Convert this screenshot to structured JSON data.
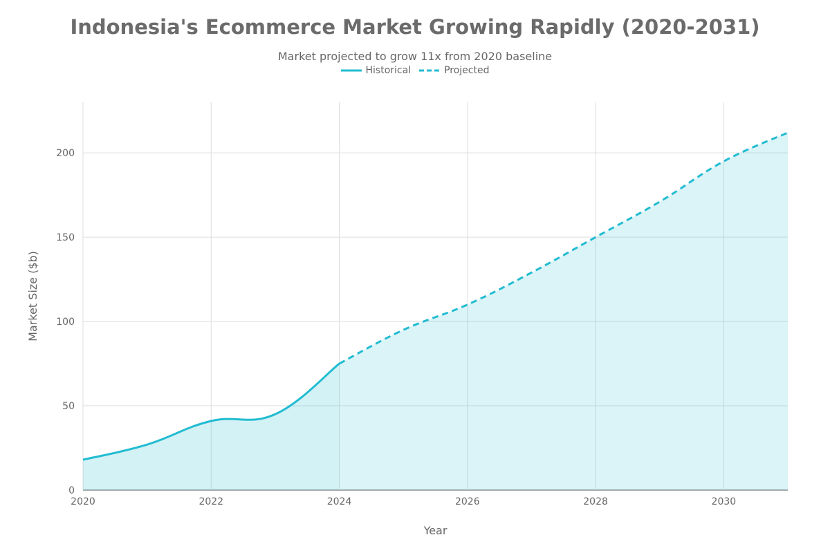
{
  "chart_data": {
    "type": "area",
    "title": "Indonesia's Ecommerce Market Growing Rapidly (2020-2031)",
    "subtitle": "Market projected to grow 11x from 2020 baseline",
    "xlabel": "Year",
    "ylabel": "Market Size ($b)",
    "xlim": [
      2020,
      2031
    ],
    "ylim": [
      0,
      230
    ],
    "x_ticks": [
      2020,
      2022,
      2024,
      2026,
      2028,
      2030
    ],
    "y_ticks": [
      0,
      50,
      100,
      150,
      200
    ],
    "grid": true,
    "legend_position": "top-center",
    "series": [
      {
        "name": "Historical",
        "style": "solid",
        "color": "#22bcd1",
        "x": [
          2020,
          2021,
          2022,
          2023,
          2024
        ],
        "values": [
          18,
          27,
          41,
          45,
          75
        ]
      },
      {
        "name": "Projected",
        "style": "dashed",
        "color": "#22bcd1",
        "x": [
          2024,
          2025,
          2026,
          2027,
          2028,
          2029,
          2030,
          2031
        ],
        "values": [
          75,
          95,
          110,
          129,
          150,
          171,
          195,
          212
        ]
      }
    ]
  }
}
